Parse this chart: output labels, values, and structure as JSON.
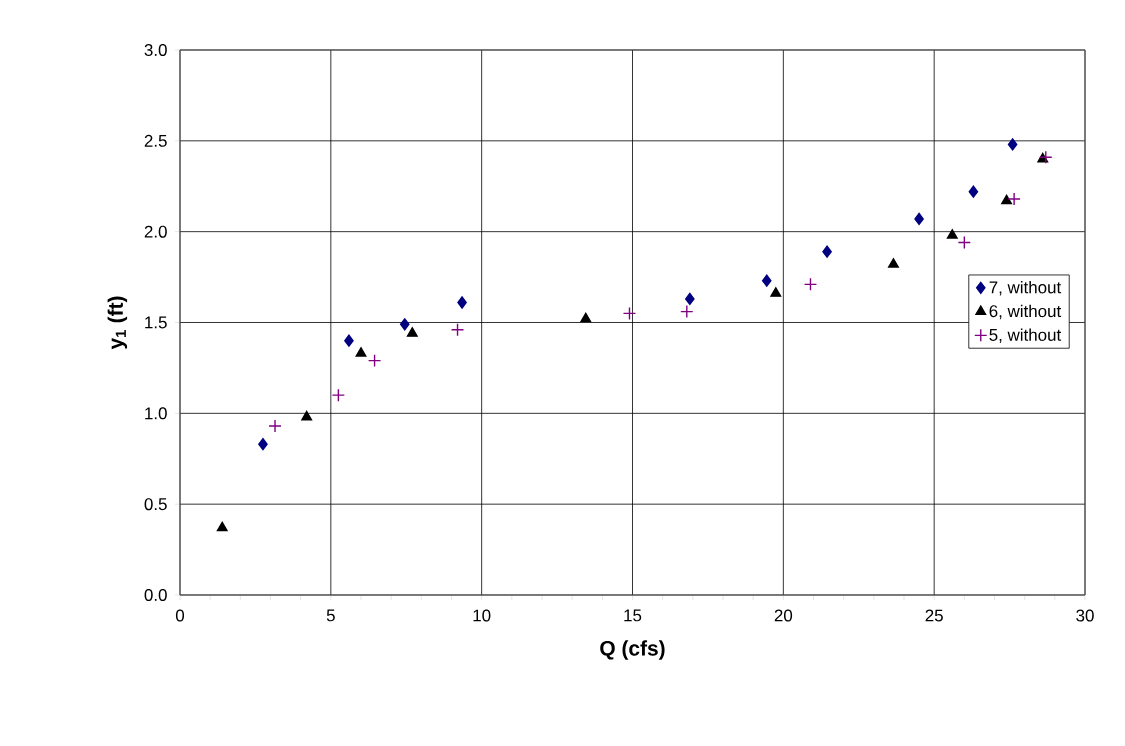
{
  "chart_data": {
    "type": "scatter",
    "xlabel": "Q (cfs)",
    "ylabel": "y$_{1}$ (ft)",
    "xlim": [
      0,
      30
    ],
    "ylim": [
      0,
      3.0
    ],
    "xticks": [
      0,
      5,
      10,
      15,
      20,
      25,
      30
    ],
    "yticks": [
      {
        "value": 0,
        "label": "0.0"
      },
      {
        "value": 0.5,
        "label": "0.5"
      },
      {
        "value": 1.0,
        "label": "1.0"
      },
      {
        "value": 1.5,
        "label": "1.5"
      },
      {
        "value": 2.0,
        "label": "2.0"
      },
      {
        "value": 2.5,
        "label": "2.5"
      },
      {
        "value": 3.0,
        "label": "3.0"
      }
    ],
    "grid": true,
    "legend": "right",
    "series": [
      {
        "name": "7, without",
        "color": "#000080",
        "marker": "diamond",
        "x": [
          2.75,
          5.6,
          7.45,
          9.35,
          16.9,
          19.45,
          21.45,
          24.5,
          26.3,
          27.6
        ],
        "values": [
          0.83,
          1.4,
          1.49,
          1.61,
          1.63,
          1.73,
          1.89,
          2.07,
          2.22,
          2.48
        ]
      },
      {
        "name": "6, without",
        "color": "#000000",
        "marker": "triangle",
        "x": [
          1.4,
          4.2,
          6.0,
          7.7,
          13.45,
          19.75,
          23.65,
          25.6,
          27.4,
          28.6
        ],
        "values": [
          0.37,
          0.98,
          1.33,
          1.44,
          1.52,
          1.66,
          1.82,
          1.98,
          2.17,
          2.4
        ]
      },
      {
        "name": "5, without",
        "color": "#800080",
        "marker": "cross",
        "x": [
          3.15,
          5.25,
          6.45,
          9.2,
          14.9,
          16.8,
          20.9,
          26.0,
          27.65,
          28.7
        ],
        "values": [
          0.93,
          1.1,
          1.29,
          1.46,
          1.55,
          1.56,
          1.71,
          1.94,
          2.18,
          2.41
        ]
      }
    ]
  }
}
